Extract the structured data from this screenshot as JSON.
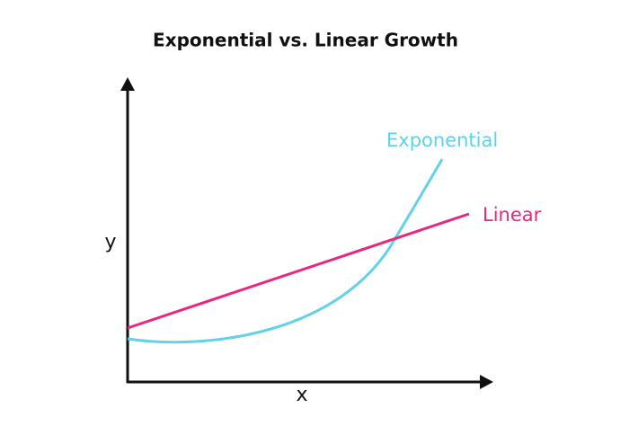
{
  "title": "Exponential vs. Linear Growth",
  "axes": {
    "x": "x",
    "y": "y"
  },
  "curves": [
    {
      "label": "Exponential"
    },
    {
      "label": "Linear"
    }
  ]
}
